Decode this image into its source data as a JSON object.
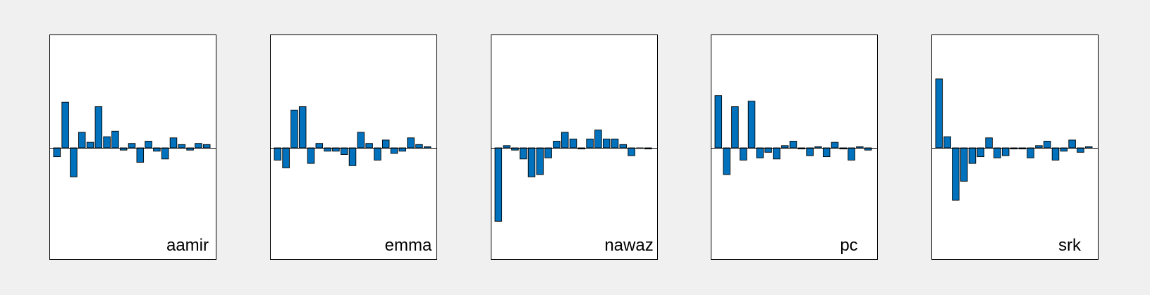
{
  "colors": {
    "figure_background": "#f0f0f0",
    "axes_background": "#ffffff",
    "bar_fill": "#0072bd",
    "bar_edge": "#000000"
  },
  "chart_data": [
    {
      "type": "bar",
      "label": "aamir",
      "ylim": [
        -1,
        1
      ],
      "values": [
        -0.08,
        0.41,
        -0.26,
        0.14,
        0.05,
        0.37,
        0.1,
        0.15,
        -0.02,
        0.04,
        -0.13,
        0.06,
        -0.03,
        -0.1,
        0.09,
        0.03,
        -0.02,
        0.04,
        0.03
      ]
    },
    {
      "type": "bar",
      "label": "emma",
      "ylim": [
        -1,
        1
      ],
      "values": [
        -0.11,
        -0.18,
        0.34,
        0.37,
        -0.14,
        0.04,
        -0.03,
        -0.03,
        -0.06,
        -0.16,
        0.14,
        0.04,
        -0.11,
        0.07,
        -0.05,
        -0.03,
        0.09,
        0.03,
        0.01
      ]
    },
    {
      "type": "bar",
      "label": "nawaz",
      "ylim": [
        -1,
        1
      ],
      "values": [
        -0.66,
        0.02,
        -0.02,
        -0.1,
        -0.26,
        -0.24,
        -0.09,
        0.06,
        0.14,
        0.08,
        -0.01,
        0.08,
        0.16,
        0.08,
        0.08,
        0.03,
        -0.07,
        0,
        -0.01
      ]
    },
    {
      "type": "bar",
      "label": "pc",
      "ylim": [
        -1,
        1
      ],
      "values": [
        0.47,
        -0.24,
        0.37,
        -0.11,
        0.42,
        -0.09,
        -0.04,
        -0.1,
        0.02,
        0.06,
        -0.01,
        -0.07,
        0.01,
        -0.08,
        0.05,
        -0.01,
        -0.11,
        0.01,
        -0.02
      ]
    },
    {
      "type": "bar",
      "label": "srk",
      "ylim": [
        -1,
        1
      ],
      "values": [
        0.62,
        0.1,
        -0.47,
        -0.3,
        -0.14,
        -0.08,
        0.09,
        -0.09,
        -0.07,
        -0.01,
        -0.01,
        -0.09,
        0.02,
        0.06,
        -0.11,
        -0.03,
        0.07,
        -0.04,
        0.01
      ]
    }
  ]
}
